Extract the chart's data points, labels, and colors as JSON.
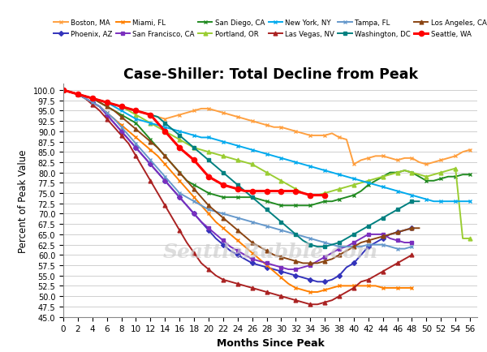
{
  "title": "Case-Shiller: Total Decline from Peak",
  "xlabel": "Months Since Peak",
  "ylabel": "Percent of Peak Value",
  "xlim": [
    0,
    57
  ],
  "ylim": [
    45,
    101.5
  ],
  "yticks": [
    45.0,
    47.5,
    50.0,
    52.5,
    55.0,
    57.5,
    60.0,
    62.5,
    65.0,
    67.5,
    70.0,
    72.5,
    75.0,
    77.5,
    80.0,
    82.5,
    85.0,
    87.5,
    90.0,
    92.5,
    95.0,
    97.5,
    100.0
  ],
  "xticks": [
    0,
    2,
    4,
    6,
    8,
    10,
    12,
    14,
    16,
    18,
    20,
    22,
    24,
    26,
    28,
    30,
    32,
    34,
    36,
    38,
    40,
    42,
    44,
    46,
    48,
    50,
    52,
    54,
    56
  ],
  "watermark": "SeattleBubble.com",
  "series": [
    {
      "label": "Boston, MA",
      "color": "#FFA040",
      "marker": "x",
      "markersize": 3.5,
      "linewidth": 1.4,
      "x": [
        0,
        1,
        2,
        3,
        4,
        5,
        6,
        7,
        8,
        9,
        10,
        11,
        12,
        13,
        14,
        15,
        16,
        17,
        18,
        19,
        20,
        21,
        22,
        23,
        24,
        25,
        26,
        27,
        28,
        29,
        30,
        31,
        32,
        33,
        34,
        35,
        36,
        37,
        38,
        39,
        40,
        41,
        42,
        43,
        44,
        45,
        46,
        47,
        48,
        49,
        50,
        51,
        52,
        53,
        54,
        55,
        56
      ],
      "y": [
        100,
        99.5,
        99.0,
        98.5,
        98.0,
        97.5,
        97.0,
        96.5,
        96.0,
        95.5,
        95.0,
        94.5,
        94.0,
        93.5,
        93.0,
        93.5,
        94.0,
        94.5,
        95.0,
        95.5,
        95.5,
        95.0,
        94.5,
        94.0,
        93.5,
        93.0,
        92.5,
        92.0,
        91.5,
        91.0,
        91.0,
        90.5,
        90.0,
        89.5,
        89.0,
        89.0,
        89.0,
        89.5,
        88.5,
        88.0,
        82.0,
        83.0,
        83.5,
        84.0,
        84.0,
        83.5,
        83.0,
        83.5,
        83.5,
        82.5,
        82.0,
        82.5,
        83.0,
        83.5,
        84.0,
        85.0,
        85.5
      ]
    },
    {
      "label": "Phoenix, AZ",
      "color": "#3333BB",
      "marker": "D",
      "markersize": 3,
      "linewidth": 1.4,
      "x": [
        0,
        1,
        2,
        3,
        4,
        5,
        6,
        7,
        8,
        9,
        10,
        11,
        12,
        13,
        14,
        15,
        16,
        17,
        18,
        19,
        20,
        21,
        22,
        23,
        24,
        25,
        26,
        27,
        28,
        29,
        30,
        31,
        32,
        33,
        34,
        35,
        36,
        37,
        38,
        39,
        40,
        41,
        42,
        43,
        44,
        45,
        46,
        47,
        48
      ],
      "y": [
        100,
        99.5,
        99.0,
        98.0,
        97.0,
        96.0,
        94.0,
        92.0,
        90.0,
        88.0,
        86.0,
        84.0,
        82.0,
        80.0,
        78.0,
        76.0,
        74.0,
        72.0,
        70.0,
        68.0,
        66.0,
        64.0,
        62.5,
        61.0,
        60.0,
        59.0,
        58.0,
        57.5,
        57.0,
        56.5,
        56.0,
        55.5,
        55.0,
        54.5,
        54.0,
        53.5,
        53.5,
        54.0,
        55.0,
        57.0,
        58.0,
        60.0,
        62.0,
        63.0,
        64.0,
        65.0,
        65.5,
        66.0,
        66.5
      ]
    },
    {
      "label": "Miami, FL",
      "color": "#FF8000",
      "marker": "x",
      "markersize": 3.5,
      "linewidth": 1.4,
      "x": [
        0,
        1,
        2,
        3,
        4,
        5,
        6,
        7,
        8,
        9,
        10,
        11,
        12,
        13,
        14,
        15,
        16,
        17,
        18,
        19,
        20,
        21,
        22,
        23,
        24,
        25,
        26,
        27,
        28,
        29,
        30,
        31,
        32,
        33,
        34,
        35,
        36,
        37,
        38,
        39,
        40,
        41,
        42,
        43,
        44,
        45,
        46,
        47,
        48
      ],
      "y": [
        100,
        99.5,
        99.0,
        98.0,
        97.0,
        96.0,
        94.5,
        93.0,
        91.5,
        90.0,
        88.5,
        87.0,
        85.5,
        84.0,
        82.0,
        80.0,
        78.0,
        76.0,
        74.0,
        72.0,
        70.0,
        68.0,
        66.5,
        65.0,
        63.5,
        62.0,
        60.5,
        59.0,
        57.5,
        56.0,
        54.5,
        53.0,
        52.0,
        51.5,
        51.0,
        51.0,
        51.5,
        52.0,
        52.5,
        52.5,
        52.5,
        52.5,
        52.5,
        52.5,
        52.0,
        52.0,
        52.0,
        52.0,
        52.0
      ]
    },
    {
      "label": "San Francisco, CA",
      "color": "#7B2FBE",
      "marker": "s",
      "markersize": 3.5,
      "linewidth": 1.4,
      "x": [
        0,
        1,
        2,
        3,
        4,
        5,
        6,
        7,
        8,
        9,
        10,
        11,
        12,
        13,
        14,
        15,
        16,
        17,
        18,
        19,
        20,
        21,
        22,
        23,
        24,
        25,
        26,
        27,
        28,
        29,
        30,
        31,
        32,
        33,
        34,
        35,
        36,
        37,
        38,
        39,
        40,
        41,
        42,
        43,
        44,
        45,
        46,
        47,
        48
      ],
      "y": [
        100,
        99.5,
        99.0,
        98.0,
        97.0,
        96.0,
        94.0,
        92.0,
        90.0,
        88.0,
        86.0,
        84.0,
        82.0,
        80.0,
        78.0,
        76.0,
        74.0,
        72.0,
        70.0,
        68.0,
        66.5,
        65.0,
        63.5,
        62.0,
        61.0,
        60.0,
        59.0,
        58.5,
        58.0,
        57.5,
        57.0,
        56.5,
        56.5,
        57.0,
        57.5,
        58.5,
        59.5,
        60.5,
        61.5,
        62.0,
        63.0,
        64.0,
        65.0,
        65.0,
        65.0,
        64.0,
        63.5,
        63.0,
        63.0
      ]
    },
    {
      "label": "San Diego, CA",
      "color": "#228B22",
      "marker": "x",
      "markersize": 3.5,
      "linewidth": 1.4,
      "x": [
        0,
        1,
        2,
        3,
        4,
        5,
        6,
        7,
        8,
        9,
        10,
        11,
        12,
        13,
        14,
        15,
        16,
        17,
        18,
        19,
        20,
        21,
        22,
        23,
        24,
        25,
        26,
        27,
        28,
        29,
        30,
        31,
        32,
        33,
        34,
        35,
        36,
        37,
        38,
        39,
        40,
        41,
        42,
        43,
        44,
        45,
        46,
        47,
        48,
        49,
        50,
        51,
        52,
        53,
        54,
        55,
        56
      ],
      "y": [
        100,
        99.5,
        99.0,
        98.5,
        98.0,
        97.0,
        96.0,
        95.0,
        94.0,
        93.0,
        92.0,
        90.0,
        88.0,
        86.0,
        84.0,
        82.0,
        80.0,
        78.0,
        77.0,
        76.0,
        75.0,
        74.5,
        74.0,
        74.0,
        74.0,
        74.0,
        74.0,
        73.5,
        73.0,
        72.5,
        72.0,
        72.0,
        72.0,
        72.0,
        72.0,
        72.5,
        73.0,
        73.0,
        73.5,
        74.0,
        74.5,
        75.5,
        77.0,
        78.0,
        79.0,
        80.0,
        80.0,
        80.5,
        80.0,
        79.0,
        78.0,
        78.0,
        78.5,
        79.0,
        79.0,
        79.5,
        79.5
      ]
    },
    {
      "label": "Portland, OR",
      "color": "#9ACD32",
      "marker": "^",
      "markersize": 3.5,
      "linewidth": 1.4,
      "x": [
        0,
        1,
        2,
        3,
        4,
        5,
        6,
        7,
        8,
        9,
        10,
        11,
        12,
        13,
        14,
        15,
        16,
        17,
        18,
        19,
        20,
        21,
        22,
        23,
        24,
        25,
        26,
        27,
        28,
        29,
        30,
        31,
        32,
        33,
        34,
        35,
        36,
        37,
        38,
        39,
        40,
        41,
        42,
        43,
        44,
        45,
        46,
        47,
        48,
        49,
        50,
        51,
        52,
        53,
        54,
        55,
        56
      ],
      "y": [
        100,
        99.5,
        99.0,
        98.5,
        98.0,
        97.5,
        97.0,
        96.5,
        96.0,
        95.0,
        94.0,
        93.0,
        92.0,
        91.0,
        90.0,
        89.0,
        88.0,
        87.0,
        86.0,
        85.5,
        85.0,
        84.5,
        84.0,
        83.5,
        83.0,
        82.5,
        82.0,
        81.0,
        80.0,
        79.0,
        78.0,
        77.0,
        76.0,
        75.0,
        74.5,
        74.5,
        75.0,
        75.5,
        76.0,
        76.5,
        77.0,
        77.5,
        78.0,
        78.5,
        79.0,
        79.5,
        80.0,
        80.5,
        80.0,
        79.5,
        79.0,
        79.5,
        80.0,
        80.5,
        81.0,
        64.0,
        64.0
      ]
    },
    {
      "label": "New York, NY",
      "color": "#00AAEE",
      "marker": "x",
      "markersize": 3.5,
      "linewidth": 1.4,
      "x": [
        0,
        1,
        2,
        3,
        4,
        5,
        6,
        7,
        8,
        9,
        10,
        11,
        12,
        13,
        14,
        15,
        16,
        17,
        18,
        19,
        20,
        21,
        22,
        23,
        24,
        25,
        26,
        27,
        28,
        29,
        30,
        31,
        32,
        33,
        34,
        35,
        36,
        37,
        38,
        39,
        40,
        41,
        42,
        43,
        44,
        45,
        46,
        47,
        48,
        49,
        50,
        51,
        52,
        53,
        54,
        55,
        56
      ],
      "y": [
        100,
        99.5,
        99.0,
        98.5,
        98.0,
        97.5,
        97.0,
        96.0,
        95.0,
        94.0,
        93.0,
        92.5,
        92.0,
        91.5,
        91.0,
        90.5,
        90.0,
        89.5,
        89.0,
        88.5,
        88.5,
        88.0,
        87.5,
        87.0,
        86.5,
        86.0,
        85.5,
        85.0,
        84.5,
        84.0,
        83.5,
        83.0,
        82.5,
        82.0,
        81.5,
        81.0,
        80.5,
        80.0,
        79.5,
        79.0,
        78.5,
        78.0,
        77.5,
        77.0,
        76.5,
        76.0,
        75.5,
        75.0,
        74.5,
        74.0,
        73.5,
        73.0,
        73.0,
        73.0,
        73.0,
        73.0,
        73.0
      ]
    },
    {
      "label": "Las Vegas, NV",
      "color": "#AA2222",
      "marker": "^",
      "markersize": 3.5,
      "linewidth": 1.4,
      "x": [
        0,
        1,
        2,
        3,
        4,
        5,
        6,
        7,
        8,
        9,
        10,
        11,
        12,
        13,
        14,
        15,
        16,
        17,
        18,
        19,
        20,
        21,
        22,
        23,
        24,
        25,
        26,
        27,
        28,
        29,
        30,
        31,
        32,
        33,
        34,
        35,
        36,
        37,
        38,
        39,
        40,
        41,
        42,
        43,
        44,
        45,
        46,
        47,
        48
      ],
      "y": [
        100,
        99.5,
        99.0,
        98.0,
        96.5,
        95.0,
        93.0,
        91.0,
        89.0,
        87.0,
        84.0,
        81.0,
        78.0,
        75.0,
        72.0,
        69.0,
        66.0,
        63.0,
        60.5,
        58.0,
        56.5,
        55.0,
        54.0,
        53.5,
        53.0,
        52.5,
        52.0,
        51.5,
        51.0,
        50.5,
        50.0,
        49.5,
        49.0,
        48.5,
        48.0,
        48.0,
        48.5,
        49.0,
        50.0,
        51.0,
        52.0,
        53.5,
        54.0,
        55.0,
        56.0,
        57.0,
        58.0,
        59.0,
        60.0
      ]
    },
    {
      "label": "Tampa, FL",
      "color": "#6699CC",
      "marker": "x",
      "markersize": 3.5,
      "linewidth": 1.4,
      "x": [
        0,
        1,
        2,
        3,
        4,
        5,
        6,
        7,
        8,
        9,
        10,
        11,
        12,
        13,
        14,
        15,
        16,
        17,
        18,
        19,
        20,
        21,
        22,
        23,
        24,
        25,
        26,
        27,
        28,
        29,
        30,
        31,
        32,
        33,
        34,
        35,
        36,
        37,
        38,
        39,
        40,
        41,
        42,
        43,
        44,
        45,
        46,
        47,
        48
      ],
      "y": [
        100,
        99.5,
        99.0,
        98.0,
        97.0,
        96.0,
        94.5,
        93.0,
        91.0,
        89.0,
        87.0,
        85.0,
        83.0,
        81.0,
        79.0,
        77.0,
        75.0,
        74.0,
        73.0,
        72.0,
        71.0,
        70.5,
        70.0,
        69.5,
        69.0,
        68.5,
        68.0,
        67.5,
        67.0,
        66.5,
        66.0,
        65.5,
        65.0,
        64.5,
        64.0,
        63.5,
        63.0,
        62.5,
        62.0,
        62.0,
        62.0,
        62.0,
        62.5,
        62.5,
        62.5,
        62.0,
        61.5,
        61.5,
        62.0
      ]
    },
    {
      "label": "Washington, DC",
      "color": "#008080",
      "marker": "s",
      "markersize": 3.5,
      "linewidth": 1.4,
      "x": [
        0,
        1,
        2,
        3,
        4,
        5,
        6,
        7,
        8,
        9,
        10,
        11,
        12,
        13,
        14,
        15,
        16,
        17,
        18,
        19,
        20,
        21,
        22,
        23,
        24,
        25,
        26,
        27,
        28,
        29,
        30,
        31,
        32,
        33,
        34,
        35,
        36,
        37,
        38,
        39,
        40,
        41,
        42,
        43,
        44,
        45,
        46,
        47,
        48,
        49
      ],
      "y": [
        100,
        99.5,
        99.0,
        98.5,
        98.0,
        97.5,
        97.0,
        96.5,
        96.0,
        95.5,
        95.0,
        94.5,
        94.0,
        93.5,
        92.0,
        90.5,
        89.0,
        87.5,
        86.0,
        84.5,
        83.0,
        81.5,
        80.0,
        78.5,
        77.0,
        75.5,
        74.0,
        72.5,
        71.0,
        69.5,
        68.0,
        66.5,
        65.0,
        63.5,
        62.5,
        62.0,
        62.0,
        62.5,
        63.0,
        64.0,
        65.0,
        66.0,
        67.0,
        68.0,
        69.0,
        70.0,
        71.0,
        72.0,
        73.0,
        73.0
      ]
    },
    {
      "label": "Los Angeles, CA",
      "color": "#8B4513",
      "marker": "^",
      "markersize": 3.5,
      "linewidth": 1.4,
      "x": [
        0,
        1,
        2,
        3,
        4,
        5,
        6,
        7,
        8,
        9,
        10,
        11,
        12,
        13,
        14,
        15,
        16,
        17,
        18,
        19,
        20,
        21,
        22,
        23,
        24,
        25,
        26,
        27,
        28,
        29,
        30,
        31,
        32,
        33,
        34,
        35,
        36,
        37,
        38,
        39,
        40,
        41,
        42,
        43,
        44,
        45,
        46,
        47,
        48,
        49
      ],
      "y": [
        100,
        99.5,
        99.0,
        98.5,
        98.0,
        97.0,
        96.0,
        95.0,
        93.5,
        92.0,
        90.5,
        89.0,
        87.5,
        86.0,
        84.0,
        82.0,
        80.0,
        78.0,
        76.0,
        74.0,
        72.0,
        70.5,
        69.0,
        67.5,
        66.0,
        64.5,
        63.0,
        62.0,
        61.0,
        60.0,
        59.5,
        59.0,
        58.5,
        58.0,
        58.0,
        58.0,
        58.5,
        59.0,
        60.0,
        61.0,
        62.0,
        63.0,
        63.5,
        64.0,
        64.5,
        65.0,
        65.5,
        66.0,
        66.5,
        66.5
      ]
    },
    {
      "label": "Seattle, WA",
      "color": "#FF0000",
      "marker": "o",
      "markersize": 4.5,
      "linewidth": 2.2,
      "x": [
        0,
        1,
        2,
        3,
        4,
        5,
        6,
        7,
        8,
        9,
        10,
        11,
        12,
        13,
        14,
        15,
        16,
        17,
        18,
        19,
        20,
        21,
        22,
        23,
        24,
        25,
        26,
        27,
        28,
        29,
        30,
        31,
        32,
        33,
        34,
        35,
        36
      ],
      "y": [
        100,
        99.5,
        99.0,
        98.5,
        98.0,
        97.5,
        97.0,
        96.5,
        96.0,
        95.5,
        95.0,
        94.5,
        94.0,
        92.0,
        90.0,
        88.0,
        86.0,
        84.5,
        83.0,
        81.0,
        79.0,
        78.0,
        77.0,
        76.5,
        76.0,
        75.5,
        75.5,
        75.5,
        75.5,
        75.5,
        75.5,
        75.5,
        75.5,
        75.0,
        74.5,
        74.5,
        74.5
      ]
    }
  ]
}
